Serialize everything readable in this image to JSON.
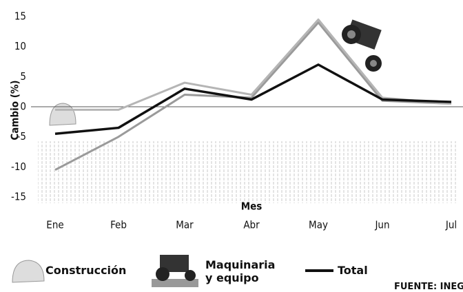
{
  "chart_data": {
    "type": "line",
    "y_label": "Cambio (%)",
    "x_label": "Mes",
    "categories": [
      "Ene",
      "Feb",
      "Mar",
      "Abr",
      "May",
      "Jun",
      "Jul"
    ],
    "series": [
      {
        "name": "Construcción",
        "color": "#9a9a9a",
        "values": [
          -10.5,
          -5,
          2,
          1.5,
          14,
          1,
          0.5
        ]
      },
      {
        "name": "Maquinaria y equipo",
        "color": "#b5b5b5",
        "values": [
          -0.5,
          -0.5,
          4,
          2,
          14.5,
          1.5,
          0.5
        ]
      },
      {
        "name": "Total",
        "color": "#111111",
        "values": [
          -4.5,
          -3.5,
          3,
          1.2,
          7,
          1.2,
          0.8
        ]
      }
    ],
    "ylim": [
      -15,
      15
    ],
    "yticks": [
      -15,
      -10,
      -5,
      0,
      5,
      10,
      15
    ],
    "source": "FUENTE: INEG"
  }
}
